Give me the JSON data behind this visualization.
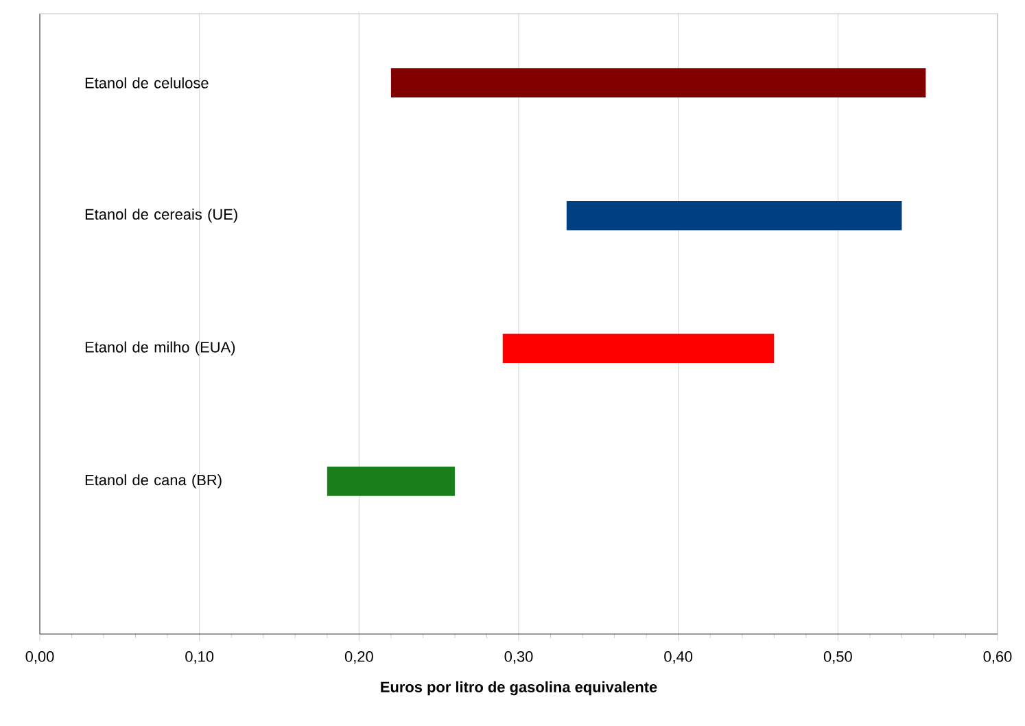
{
  "chart_data": {
    "type": "bar",
    "orientation": "horizontal",
    "xlabel": "Euros por litro de gasolina equivalente",
    "categories": [
      "Etanol de celulose",
      "Etanol de cereais (UE)",
      "Etanol de milho (EUA)",
      "Etanol de cana (BR)"
    ],
    "base": [
      0.22,
      0.33,
      0.29,
      0.18
    ],
    "values": [
      0.335,
      0.21,
      0.17,
      0.08
    ],
    "colors": [
      "#800000",
      "#004080",
      "#ff0000",
      "#1a7f1a"
    ],
    "xlim": [
      0,
      0.6
    ],
    "xticks": [
      {
        "value": 0,
        "label": "0,00"
      },
      {
        "value": 0.1,
        "label": "0,10"
      },
      {
        "value": 0.2,
        "label": "0,20"
      },
      {
        "value": 0.3,
        "label": "0,30"
      },
      {
        "value": 0.4,
        "label": "0,40"
      },
      {
        "value": 0.5,
        "label": "0,50"
      },
      {
        "value": 0.6,
        "label": "0,60"
      }
    ],
    "grid": "x"
  }
}
